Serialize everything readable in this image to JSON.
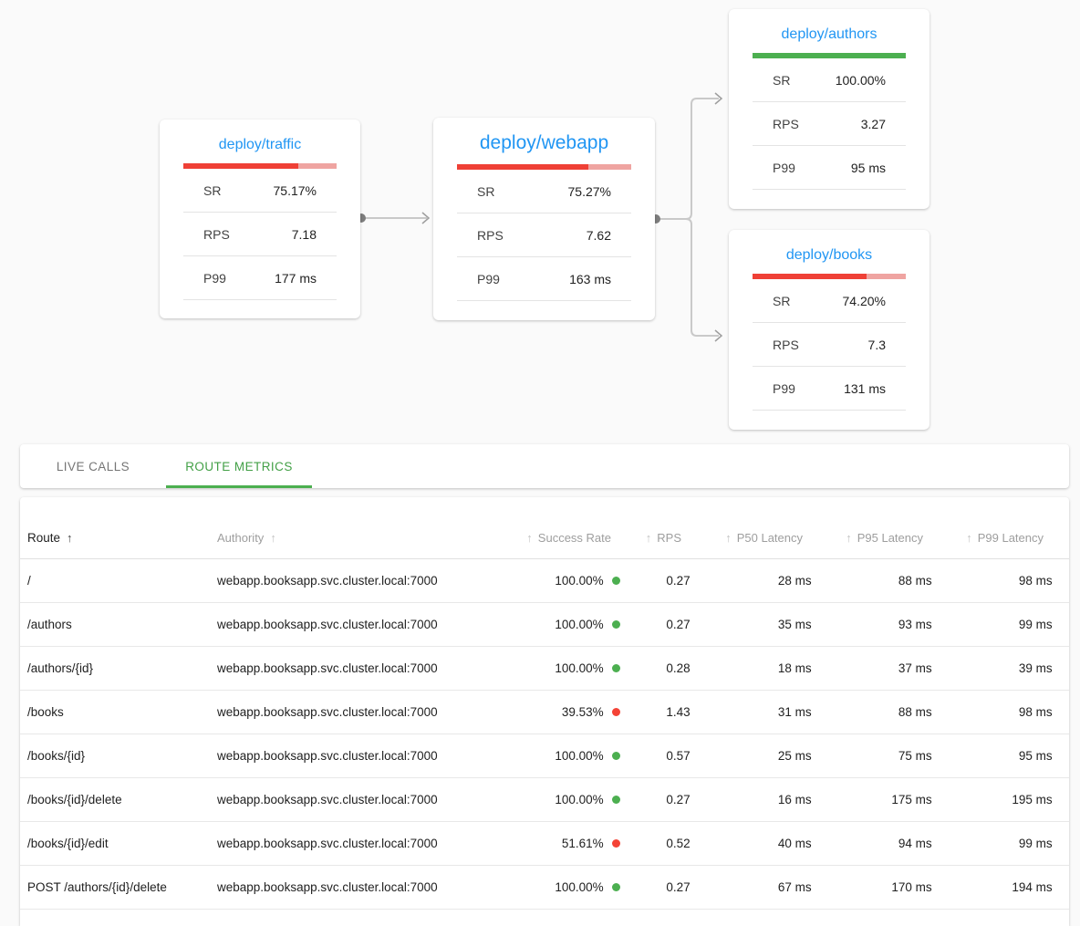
{
  "icons": {
    "sort_arrow": "↑"
  },
  "colors": {
    "node_title_blue": "#2196f3",
    "bar_red": "#ef4036",
    "bar_red_track": "#efa4a1",
    "bar_green": "#4caf50",
    "dot_green": "#4caf50",
    "dot_red": "#f44336",
    "tab_active_green": "#43a047"
  },
  "graph": {
    "nodes": [
      {
        "title": "deploy/traffic",
        "bar": {
          "pct": 75.17,
          "fill": "#ef4036",
          "track": "#efa4a1"
        },
        "rows": [
          {
            "label": "SR",
            "value": "75.17%"
          },
          {
            "label": "RPS",
            "value": "7.18"
          },
          {
            "label": "P99",
            "value": "177 ms"
          }
        ]
      },
      {
        "title": "deploy/webapp",
        "bar": {
          "pct": 75.27,
          "fill": "#ef4036",
          "track": "#efa4a1"
        },
        "rows": [
          {
            "label": "SR",
            "value": "75.27%"
          },
          {
            "label": "RPS",
            "value": "7.62"
          },
          {
            "label": "P99",
            "value": "163 ms"
          }
        ]
      },
      {
        "title": "deploy/authors",
        "bar": {
          "pct": 100,
          "fill": "#4caf50",
          "track": "#4caf50"
        },
        "rows": [
          {
            "label": "SR",
            "value": "100.00%"
          },
          {
            "label": "RPS",
            "value": "3.27"
          },
          {
            "label": "P99",
            "value": "95 ms"
          }
        ]
      },
      {
        "title": "deploy/books",
        "bar": {
          "pct": 74.2,
          "fill": "#ef4036",
          "track": "#efa4a1"
        },
        "rows": [
          {
            "label": "SR",
            "value": "74.20%"
          },
          {
            "label": "RPS",
            "value": "7.3"
          },
          {
            "label": "P99",
            "value": "131 ms"
          }
        ]
      }
    ]
  },
  "tabs": [
    {
      "label": "LIVE CALLS",
      "active": false
    },
    {
      "label": "ROUTE METRICS",
      "active": true
    }
  ],
  "table": {
    "columns": {
      "route": "Route",
      "authority": "Authority",
      "success_rate": "Success Rate",
      "rps": "RPS",
      "p50": "P50 Latency",
      "p95": "P95 Latency",
      "p99": "P99 Latency"
    },
    "rows": [
      {
        "route": "/",
        "authority": "webapp.booksapp.svc.cluster.local:7000",
        "success_rate": "100.00%",
        "dot_color": "#4caf50",
        "rps": "0.27",
        "p50": "28 ms",
        "p95": "88 ms",
        "p99": "98 ms"
      },
      {
        "route": "/authors",
        "authority": "webapp.booksapp.svc.cluster.local:7000",
        "success_rate": "100.00%",
        "dot_color": "#4caf50",
        "rps": "0.27",
        "p50": "35 ms",
        "p95": "93 ms",
        "p99": "99 ms"
      },
      {
        "route": "/authors/{id}",
        "authority": "webapp.booksapp.svc.cluster.local:7000",
        "success_rate": "100.00%",
        "dot_color": "#4caf50",
        "rps": "0.28",
        "p50": "18 ms",
        "p95": "37 ms",
        "p99": "39 ms"
      },
      {
        "route": "/books",
        "authority": "webapp.booksapp.svc.cluster.local:7000",
        "success_rate": "39.53%",
        "dot_color": "#f44336",
        "rps": "1.43",
        "p50": "31 ms",
        "p95": "88 ms",
        "p99": "98 ms"
      },
      {
        "route": "/books/{id}",
        "authority": "webapp.booksapp.svc.cluster.local:7000",
        "success_rate": "100.00%",
        "dot_color": "#4caf50",
        "rps": "0.57",
        "p50": "25 ms",
        "p95": "75 ms",
        "p99": "95 ms"
      },
      {
        "route": "/books/{id}/delete",
        "authority": "webapp.booksapp.svc.cluster.local:7000",
        "success_rate": "100.00%",
        "dot_color": "#4caf50",
        "rps": "0.27",
        "p50": "16 ms",
        "p95": "175 ms",
        "p99": "195 ms"
      },
      {
        "route": "/books/{id}/edit",
        "authority": "webapp.booksapp.svc.cluster.local:7000",
        "success_rate": "51.61%",
        "dot_color": "#f44336",
        "rps": "0.52",
        "p50": "40 ms",
        "p95": "94 ms",
        "p99": "99 ms"
      },
      {
        "route": "POST /authors/{id}/delete",
        "authority": "webapp.booksapp.svc.cluster.local:7000",
        "success_rate": "100.00%",
        "dot_color": "#4caf50",
        "rps": "0.27",
        "p50": "67 ms",
        "p95": "170 ms",
        "p99": "194 ms"
      }
    ]
  }
}
